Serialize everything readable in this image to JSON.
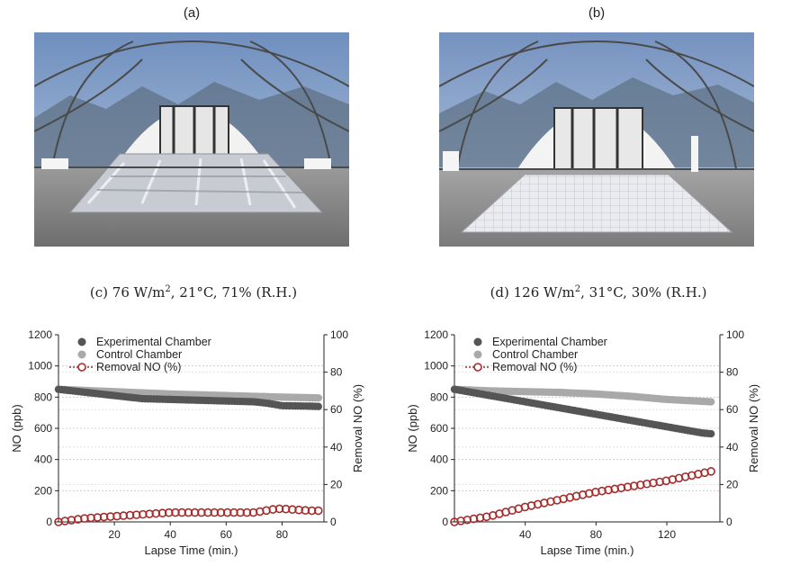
{
  "panels": {
    "a": {
      "label": "(a)"
    },
    "b": {
      "label": "(b)"
    }
  },
  "charts_text": {
    "c": {
      "prefix": "(c) 76 W/m",
      "sup": "2",
      "suffix": ", 21°C, 71% (R.H.)"
    },
    "d": {
      "prefix": "(d) 126 W/m",
      "sup": "2",
      "suffix": ", 31°C, 30% (R.H.)"
    }
  },
  "colors": {
    "experimental": "#555555",
    "control": "#a9a9a9",
    "removal": "#a52a2a"
  },
  "chart_data": [
    {
      "type": "scatter",
      "title": "(c) 76 W/m2, 21°C, 71% (R.H.)",
      "xlabel": "Lapse Time (min.)",
      "ylabel": "NO (ppb)",
      "y2label": "Removal NO (%)",
      "xlim": [
        0,
        95
      ],
      "ylim": [
        0,
        1200
      ],
      "y2lim": [
        0,
        100
      ],
      "xticks": [
        20,
        40,
        60,
        80
      ],
      "yticks": [
        0,
        200,
        400,
        600,
        800,
        1000,
        1200
      ],
      "y2ticks": [
        0,
        20,
        40,
        60,
        80,
        100
      ],
      "grid": true,
      "legend": "top-left",
      "series": [
        {
          "name": "Experimental Chamber",
          "axis": "left",
          "x": [
            0,
            10,
            20,
            30,
            40,
            50,
            60,
            70,
            75,
            80,
            90,
            93
          ],
          "y": [
            850,
            830,
            810,
            790,
            785,
            780,
            775,
            770,
            760,
            745,
            742,
            740
          ]
        },
        {
          "name": "Control Chamber",
          "axis": "left",
          "x": [
            0,
            20,
            40,
            60,
            80,
            93
          ],
          "y": [
            850,
            835,
            820,
            810,
            800,
            795
          ]
        },
        {
          "name": "Removal NO (%)",
          "axis": "right",
          "x": [
            0,
            10,
            20,
            30,
            40,
            50,
            60,
            70,
            78,
            80,
            90,
            93
          ],
          "y": [
            0,
            2,
            3,
            4,
            5,
            5,
            5,
            5,
            7,
            7,
            6,
            6
          ]
        }
      ]
    },
    {
      "type": "scatter",
      "title": "(d) 126 W/m2, 31°C, 30% (R.H.)",
      "xlabel": "Lapse Time (min.)",
      "ylabel": "NO (ppb)",
      "y2label": "Removal NO (%)",
      "xlim": [
        0,
        150
      ],
      "ylim": [
        0,
        1200
      ],
      "y2lim": [
        0,
        100
      ],
      "xticks": [
        40,
        80,
        120
      ],
      "yticks": [
        0,
        200,
        400,
        600,
        800,
        1000,
        1200
      ],
      "y2ticks": [
        0,
        20,
        40,
        60,
        80,
        100
      ],
      "grid": true,
      "legend": "top-left",
      "series": [
        {
          "name": "Experimental Chamber",
          "axis": "left",
          "x": [
            0,
            20,
            40,
            60,
            80,
            100,
            120,
            140,
            145
          ],
          "y": [
            850,
            810,
            770,
            730,
            690,
            650,
            610,
            570,
            565
          ]
        },
        {
          "name": "Control Chamber",
          "axis": "left",
          "x": [
            0,
            20,
            40,
            60,
            80,
            100,
            120,
            145
          ],
          "y": [
            850,
            840,
            835,
            830,
            820,
            805,
            785,
            770
          ]
        },
        {
          "name": "Removal NO (%)",
          "axis": "right",
          "x": [
            0,
            20,
            40,
            60,
            80,
            100,
            120,
            140,
            145
          ],
          "y": [
            0,
            3,
            8,
            12,
            16,
            19,
            22,
            26,
            27
          ]
        }
      ]
    }
  ]
}
